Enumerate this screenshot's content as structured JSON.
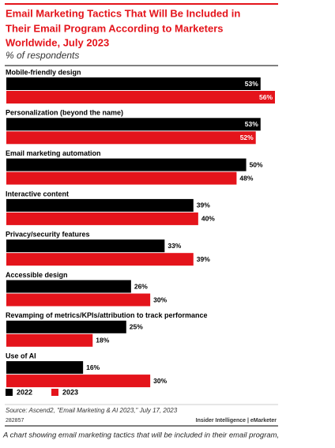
{
  "chart_data": {
    "type": "bar",
    "orientation": "horizontal",
    "title": [
      "Email Marketing Tactics That Will Be Included in",
      "Their Email Program According to Marketers",
      "Worldwide, July 2023"
    ],
    "subtitle": "% of respondents",
    "categories": [
      "Mobile-friendly design",
      "Personalization (beyond the name)",
      "Email marketing automation",
      "Interactive content",
      "Privacy/security features",
      "Accessible design",
      "Revamping of metrics/KPIs/attribution to track performance",
      "Use of AI"
    ],
    "series": [
      {
        "name": "2022",
        "color": "#000000",
        "values": [
          53,
          53,
          50,
          39,
          33,
          26,
          25,
          16
        ],
        "value_labels": [
          "53%",
          "53%",
          "50%",
          "39%",
          "33%",
          "26%",
          "25%",
          "16%"
        ]
      },
      {
        "name": "2023",
        "color": "#e4141b",
        "values": [
          56,
          52,
          48,
          40,
          39,
          30,
          18,
          30
        ],
        "value_labels": [
          "56%",
          "52%",
          "48%",
          "40%",
          "39%",
          "30%",
          "18%",
          "30%"
        ]
      }
    ],
    "source": "Source: Ascend2, \"Email Marketing & AI 2023,\" July 17, 2023",
    "chart_id": "282857",
    "credit": "Insider Intelligence | eMarketer",
    "caption": "A chart showing email marketing tactics that will be included in their email program,"
  }
}
